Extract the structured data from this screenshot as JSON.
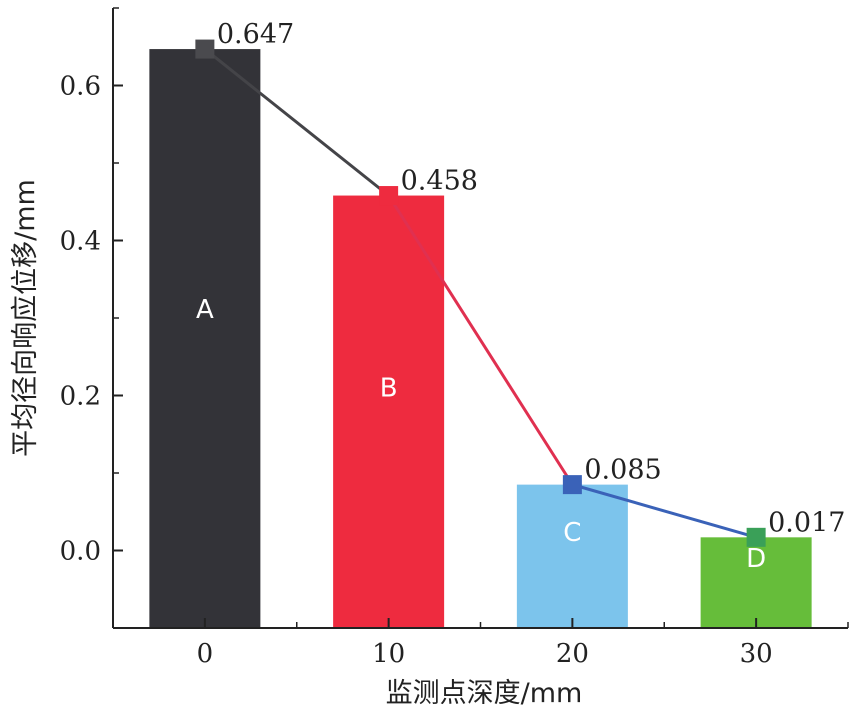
{
  "chart_data": {
    "type": "bar",
    "xlabel": "监测点深度/mm",
    "ylabel": "平均径向响应位移/mm",
    "categories": [
      "0",
      "10",
      "20",
      "30"
    ],
    "values": [
      0.647,
      0.458,
      0.085,
      0.017
    ],
    "value_labels": [
      "0.647",
      "0.458",
      "0.085",
      "0.017"
    ],
    "bar_letters": [
      "A",
      "B",
      "C",
      "D"
    ],
    "bar_colors": [
      "#333338",
      "#ee2b3f",
      "#7cc4ec",
      "#66bd3a"
    ],
    "line_overlay": {
      "type": "line",
      "marker": "square",
      "marker_colors": [
        "#4a4a4e",
        "#ee2b3f",
        "#3a62b8",
        "#3aa058"
      ],
      "segment_colors": [
        "#444448",
        "#e03050",
        "#3a62b8"
      ]
    },
    "ylim": [
      -0.1,
      0.7
    ],
    "yticks": [
      0.0,
      0.2,
      0.4,
      0.6
    ],
    "ytick_labels": [
      "0.0",
      "0.2",
      "0.4",
      "0.6"
    ],
    "xlim": [
      -5,
      35
    ],
    "xticks": [
      0,
      10,
      20,
      30
    ],
    "xtick_labels": [
      "0",
      "10",
      "20",
      "30"
    ],
    "grid": false,
    "legend": "none"
  }
}
